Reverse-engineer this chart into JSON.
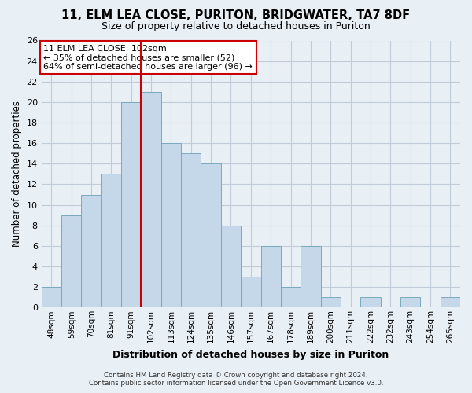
{
  "title1": "11, ELM LEA CLOSE, PURITON, BRIDGWATER, TA7 8DF",
  "title2": "Size of property relative to detached houses in Puriton",
  "xlabel": "Distribution of detached houses by size in Puriton",
  "ylabel": "Number of detached properties",
  "categories": [
    "48sqm",
    "59sqm",
    "70sqm",
    "81sqm",
    "91sqm",
    "102sqm",
    "113sqm",
    "124sqm",
    "135sqm",
    "146sqm",
    "157sqm",
    "167sqm",
    "178sqm",
    "189sqm",
    "200sqm",
    "211sqm",
    "222sqm",
    "232sqm",
    "243sqm",
    "254sqm",
    "265sqm"
  ],
  "values": [
    2,
    9,
    11,
    13,
    20,
    21,
    16,
    15,
    14,
    8,
    3,
    6,
    2,
    6,
    1,
    0,
    1,
    0,
    1,
    0,
    1
  ],
  "highlight_index": 5,
  "bar_color": "#c5d8ea",
  "bar_edge_color": "#7aaabf",
  "highlight_line_color": "#cc0000",
  "annotation_title": "11 ELM LEA CLOSE: 102sqm",
  "annotation_line1": "← 35% of detached houses are smaller (52)",
  "annotation_line2": "64% of semi-detached houses are larger (96) →",
  "annotation_box_color": "#ffffff",
  "annotation_box_edge": "#cc0000",
  "ylim": [
    0,
    26
  ],
  "yticks": [
    0,
    2,
    4,
    6,
    8,
    10,
    12,
    14,
    16,
    18,
    20,
    22,
    24,
    26
  ],
  "footer1": "Contains HM Land Registry data © Crown copyright and database right 2024.",
  "footer2": "Contains public sector information licensed under the Open Government Licence v3.0.",
  "bg_color": "#e8eff5",
  "plot_bg_color": "#e8eff5",
  "grid_color": "#c0cdd8"
}
